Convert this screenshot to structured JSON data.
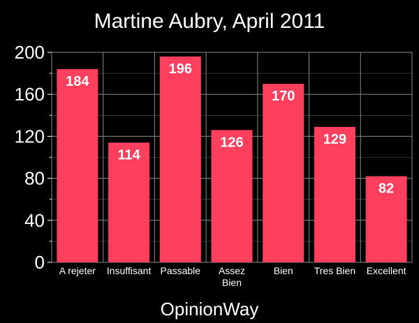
{
  "chart_data": {
    "type": "bar",
    "title": "Martine Aubry, April 2011",
    "xlabel": "OpinionWay",
    "ylabel": "",
    "categories": [
      [
        "A rejeter"
      ],
      [
        "Insuffisant"
      ],
      [
        "Passable"
      ],
      [
        "Assez",
        "Bien"
      ],
      [
        "Bien"
      ],
      [
        "Tres Bien"
      ],
      [
        "Excellent"
      ]
    ],
    "values": [
      184,
      114,
      196,
      126,
      170,
      129,
      82
    ],
    "ylim": [
      0,
      200
    ],
    "yticks": [
      "0",
      "40",
      "80",
      "120",
      "160",
      "200"
    ],
    "grid": true,
    "colors": {
      "bar": "#ff3f5e",
      "background": "#000000",
      "grid": "#8a8a8a",
      "text": "#ffffff"
    }
  }
}
